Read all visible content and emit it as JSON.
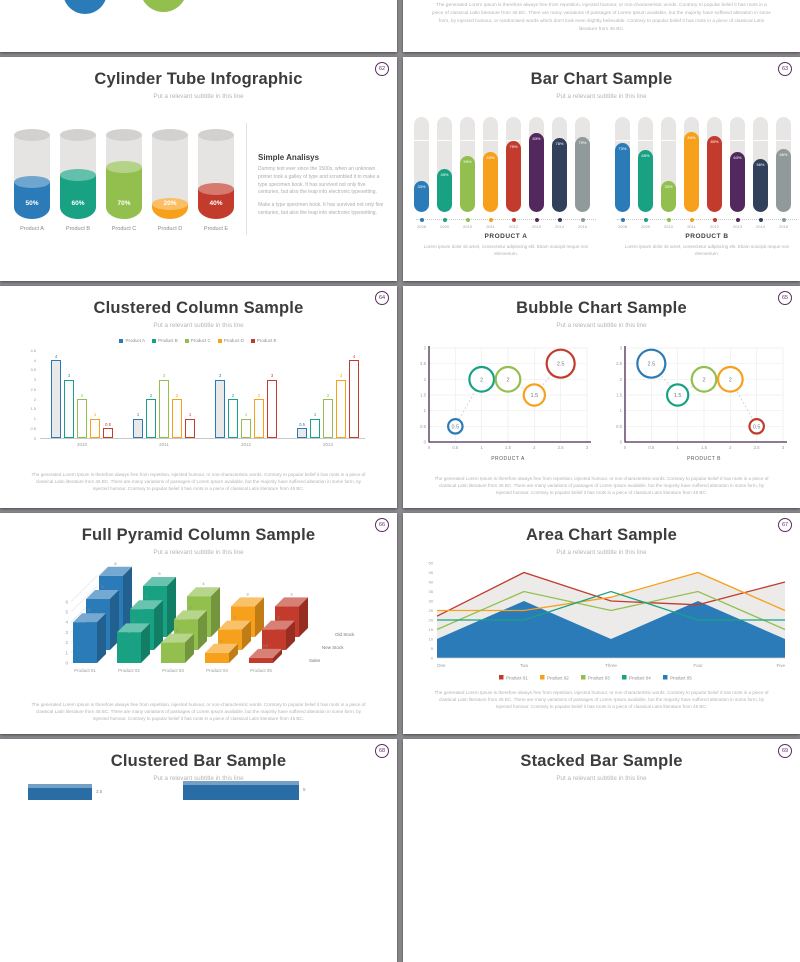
{
  "background": "#8e8c90",
  "palette": {
    "blue": "#2b7bb9",
    "teal": "#18a283",
    "green": "#92bf4e",
    "orange": "#f7a01b",
    "red": "#c23b2c",
    "purple": "#53285f",
    "navy": "#32405c",
    "gray": "#909a9b",
    "badge": "#5b2d61",
    "track": "#e8e6e4",
    "tube": "#e6e4e2",
    "tube_top": "#d3d1cf",
    "title_text": "#3c3c3c",
    "subtitle_text": "#b8b5b2",
    "caption_color": "#b5b2af",
    "axis_text": "#9b9b9b",
    "bubble_axis": "#4a2b50",
    "area_fill_gray": "#ecebe9",
    "bar3d_blue": "#2a6da5"
  },
  "caption_text": "The generated Lorem Ipsum is therefore always free from repetition, injected humour, or non-characteristic words. Contrary to popular belief it has roots in a piece of classical Latin literature from 45 BC. There are many variations of passages of Lorem Ipsum available, but the majority have suffered alteration in some form, by injected humour. Contrary to popular belief it has roots in a piece of classical Latin literature from 45 BC.",
  "slides": {
    "s60": {
      "circle_colors": [
        "#2b7bb9",
        "#92bf4e"
      ]
    },
    "s61": {
      "paragraph": "The generated Lorem Ipsum is therefore always free from repetition, injected humour, or non-characteristic words. Contrary to popular belief it has roots in a piece of classical Latin literature from 45 BC. There are many variations of passages of Lorem Ipsum available, but the majority have suffered alteration in some form, by injected humour, or randomised words which don't look even slightly believable. Contrary to popular belief it has roots in a piece of classical Latin literature from 45 BC."
    },
    "s62": {
      "number": "62",
      "title": "Cylinder Tube Infographic",
      "subtitle": "Put a relevant subtitle in this line",
      "panel_heading": "Simple Analisys",
      "panel_para1": "Dummy text ever since the 1500s, when an unknown printer took a galley of type and scrambled it to make a type specimen book. It has survived not only five centuries, but also the leap into electronic typesetting.",
      "panel_para2": "Make a type specimen book. It has survived not only five centuries, but also the leap into electronic typesetting."
    },
    "s63": {
      "number": "63",
      "title": "Bar Chart Sample",
      "subtitle": "Put a relevant subtitle in this line",
      "caption": "Lorem ipsum dolor sit amet, consectetur adipiscing elit. Etiam suscipit neque non elementum."
    },
    "s64": {
      "number": "64",
      "title": "Clustered Column Sample",
      "subtitle": "Put a relevant subtitle in this line"
    },
    "s65": {
      "number": "65",
      "title": "Bubble Chart Sample",
      "subtitle": "Put a relevant subtitle in this line"
    },
    "s66": {
      "number": "66",
      "title": "Full Pyramid Column Sample",
      "subtitle": "Put a relevant subtitle in this line"
    },
    "s67": {
      "number": "67",
      "title": "Area Chart Sample",
      "subtitle": "Put a relevant subtitle in this line"
    },
    "s68": {
      "number": "68",
      "title": "Clustered Bar Sample",
      "subtitle": "Put a relevant subtitle in this line"
    },
    "s69": {
      "number": "69",
      "title": "Stacked Bar Sample",
      "subtitle": "Put a relevant subtitle in this line"
    }
  },
  "chart_data": [
    {
      "slide": "62",
      "type": "bar",
      "variant": "cylinder-fill",
      "title": "Cylinder Tube Infographic",
      "categories": [
        "Product A",
        "Product B",
        "Product C",
        "Product D",
        "Product E"
      ],
      "values": [
        50,
        60,
        70,
        20,
        40
      ],
      "unit": "%",
      "colors": [
        "#2b7bb9",
        "#18a283",
        "#92bf4e",
        "#f7a01b",
        "#c23b2c"
      ]
    },
    {
      "slide": "63",
      "type": "bar",
      "variant": "rounded-pill",
      "title": "Bar Chart Sample",
      "categories": [
        "2008",
        "2009",
        "2010",
        "2011",
        "2012",
        "2013",
        "2014",
        "2015"
      ],
      "series": [
        {
          "name": "PRODUCT A",
          "values": [
            33,
            45,
            59,
            63,
            75,
            83,
            78,
            79
          ]
        },
        {
          "name": "PRODUCT B",
          "values": [
            73,
            65,
            33,
            84,
            80,
            63,
            56,
            66
          ]
        }
      ],
      "unit": "%",
      "ylim": [
        0,
        100
      ],
      "colors": [
        "#2b7bb9",
        "#18a283",
        "#92bf4e",
        "#f7a01b",
        "#c23b2c",
        "#53285f",
        "#32405c",
        "#909a9b"
      ]
    },
    {
      "slide": "64",
      "type": "bar",
      "title": "Clustered Column Sample",
      "categories": [
        "2010",
        "2011",
        "2012",
        "2013"
      ],
      "series": [
        {
          "name": "Product A",
          "color": "#2b7bb9",
          "values": [
            4,
            1,
            3,
            0.5
          ]
        },
        {
          "name": "Product B",
          "color": "#18a283",
          "values": [
            3,
            2,
            2,
            1
          ]
        },
        {
          "name": "Product C",
          "color": "#92bf4e",
          "values": [
            2,
            3,
            1,
            2
          ]
        },
        {
          "name": "Product D",
          "color": "#f7a01b",
          "values": [
            1,
            2,
            2,
            3
          ]
        },
        {
          "name": "Product E",
          "color": "#c23b2c",
          "values": [
            0.5,
            1,
            3,
            4
          ]
        }
      ],
      "ylim": [
        0,
        4.5
      ],
      "ystep": 0.5,
      "legend_position": "top"
    },
    {
      "slide": "65",
      "type": "scatter",
      "title": "Bubble Chart Sample",
      "axes": {
        "xlim": [
          0,
          3
        ],
        "ylim": [
          0,
          3
        ],
        "step": 0.5
      },
      "charts": [
        {
          "xlabel": "PRODUCT A",
          "points": [
            {
              "x": 0.5,
              "y": 0.5,
              "label": "0.5",
              "color": "#2b7bb9"
            },
            {
              "x": 1,
              "y": 2,
              "label": "2",
              "color": "#18a283"
            },
            {
              "x": 1.5,
              "y": 2,
              "label": "2",
              "color": "#92bf4e"
            },
            {
              "x": 2,
              "y": 1.5,
              "label": "1.5",
              "color": "#f7a01b"
            },
            {
              "x": 2.5,
              "y": 2.5,
              "label": "2.5",
              "color": "#c23b2c"
            }
          ]
        },
        {
          "xlabel": "PRODUCT B",
          "points": [
            {
              "x": 0.5,
              "y": 2.5,
              "label": "2.5",
              "color": "#2b7bb9"
            },
            {
              "x": 1,
              "y": 1.5,
              "label": "1.5",
              "color": "#18a283"
            },
            {
              "x": 1.5,
              "y": 2,
              "label": "2",
              "color": "#92bf4e"
            },
            {
              "x": 2,
              "y": 2,
              "label": "2",
              "color": "#f7a01b"
            },
            {
              "x": 2.5,
              "y": 0.5,
              "label": "0.5",
              "color": "#c23b2c"
            }
          ]
        }
      ]
    },
    {
      "slide": "66",
      "type": "bar",
      "variant": "3d",
      "title": "Full Pyramid Column Sample",
      "categories": [
        "Product 01",
        "Product 02",
        "Product 03",
        "Product 04",
        "Product 05"
      ],
      "category_colors": [
        "#2b7bb9",
        "#18a283",
        "#92bf4e",
        "#f7a01b",
        "#c23b2c"
      ],
      "series": [
        {
          "name": "Sales",
          "values": [
            4,
            3,
            2,
            1,
            0.5
          ]
        },
        {
          "name": "New Stock",
          "values": [
            5,
            4,
            3,
            2,
            2
          ]
        },
        {
          "name": "Old Stock",
          "values": [
            6,
            5,
            4,
            3,
            3
          ]
        }
      ],
      "ylim": [
        0,
        6
      ],
      "ystep": 1
    },
    {
      "slide": "67",
      "type": "area",
      "title": "Area Chart Sample",
      "x": [
        "One",
        "Two",
        "Three",
        "Four",
        "Five"
      ],
      "series": [
        {
          "name": "Product 01",
          "color": "#c23b2c",
          "fill": "#ecebe9",
          "values": [
            22,
            45,
            30,
            28,
            40
          ]
        },
        {
          "name": "Product 02",
          "color": "#f7a01b",
          "fill": "#ecebe9",
          "values": [
            25,
            25,
            32,
            45,
            25
          ]
        },
        {
          "name": "Product 03",
          "color": "#92bf4e",
          "fill": "none",
          "values": [
            15,
            35,
            25,
            35,
            15
          ]
        },
        {
          "name": "Product 04",
          "color": "#18a283",
          "fill": "none",
          "values": [
            20,
            20,
            35,
            20,
            20
          ]
        },
        {
          "name": "Product 05",
          "color": "#2b7bb9",
          "fill": "#2b7bb9",
          "values": [
            10,
            30,
            10,
            30,
            10
          ]
        }
      ],
      "ylim": [
        0,
        50
      ],
      "ystep": 5,
      "legend_position": "bottom"
    },
    {
      "slide": "68",
      "type": "bar",
      "variant": "horizontal-3d",
      "title": "Clustered Bar Sample",
      "visible_values": [
        3.5,
        5
      ],
      "color": "#2a6da5"
    }
  ]
}
